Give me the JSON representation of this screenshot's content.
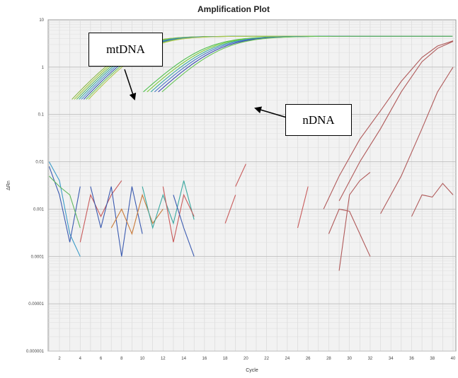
{
  "chart_data": {
    "type": "line",
    "title": "Amplification Plot",
    "xlabel": "Cycle",
    "ylabel": "ΔRn",
    "yscale": "log",
    "ylim": [
      1e-06,
      10
    ],
    "xlim": [
      1,
      40
    ],
    "grid": true,
    "x_ticks": [
      "2",
      "4",
      "6",
      "8",
      "10",
      "12",
      "14",
      "16",
      "18",
      "20",
      "22",
      "24",
      "26",
      "28",
      "30",
      "32",
      "34",
      "36",
      "38",
      "40"
    ],
    "y_ticks": [
      {
        "value": 10,
        "label": "10"
      },
      {
        "value": 1,
        "label": "1"
      },
      {
        "value": 0.1,
        "label": "0.1"
      },
      {
        "value": 0.01,
        "label": "0.01"
      },
      {
        "value": 0.001,
        "label": "0.001"
      },
      {
        "value": 0.0001,
        "label": "0.0001"
      },
      {
        "value": 1e-05,
        "label": "0.00001"
      },
      {
        "value": 1e-06,
        "label": "0.000001"
      }
    ],
    "curve_groups": [
      {
        "group": "mtDNA",
        "x_half": 9.5,
        "k": 0.55,
        "spread": 1.6,
        "colors": [
          "#8ab84a",
          "#9fc83a",
          "#5fb85f",
          "#3aa8a0",
          "#4a8fc8",
          "#3a5ab0",
          "#6ac45a",
          "#b0c850"
        ]
      },
      {
        "group": "nDNA",
        "x_half": 16.5,
        "k": 0.48,
        "spread": 1.8,
        "colors": [
          "#4fbf4f",
          "#7acc3a",
          "#3aa8a0",
          "#4a7ac8",
          "#3a4ab0",
          "#6ac45a"
        ]
      }
    ],
    "late_curves": [
      {
        "color": "#b05a5a",
        "points": [
          [
            27.5,
            0.001
          ],
          [
            29,
            0.005
          ],
          [
            31,
            0.03
          ],
          [
            33,
            0.12
          ],
          [
            35,
            0.5
          ],
          [
            37,
            1.6
          ],
          [
            38.5,
            2.8
          ],
          [
            40,
            3.6
          ]
        ]
      },
      {
        "color": "#b05a5a",
        "points": [
          [
            29,
            0.0015
          ],
          [
            31,
            0.01
          ],
          [
            33,
            0.05
          ],
          [
            35,
            0.3
          ],
          [
            37,
            1.3
          ],
          [
            38.5,
            2.5
          ],
          [
            40,
            3.5
          ]
        ]
      },
      {
        "color": "#b05a5a",
        "points": [
          [
            33,
            0.0008
          ],
          [
            35,
            0.005
          ],
          [
            37,
            0.05
          ],
          [
            38.5,
            0.3
          ],
          [
            40,
            1.0
          ]
        ]
      },
      {
        "color": "#b05a5a",
        "points": [
          [
            36,
            0.0007
          ],
          [
            37,
            0.002
          ],
          [
            38,
            0.0018
          ],
          [
            39,
            0.0035
          ],
          [
            40,
            0.002
          ]
        ]
      }
    ],
    "noise_segments": [
      {
        "color": "#3a9ac8",
        "points": [
          [
            1,
            0.01
          ],
          [
            2,
            0.004
          ],
          [
            3,
            0.0003
          ],
          [
            4,
            0.0001
          ]
        ]
      },
      {
        "color": "#3a5ab0",
        "points": [
          [
            1,
            0.008
          ],
          [
            2,
            0.002
          ],
          [
            3,
            0.0002
          ],
          [
            4,
            0.003
          ]
        ]
      },
      {
        "color": "#5fb85f",
        "points": [
          [
            1,
            0.005
          ],
          [
            2,
            0.003
          ],
          [
            3,
            0.002
          ],
          [
            4,
            0.0004
          ]
        ]
      },
      {
        "color": "#c85a5a",
        "points": [
          [
            4,
            0.0002
          ],
          [
            5,
            0.002
          ],
          [
            6,
            0.0007
          ],
          [
            7,
            0.002
          ],
          [
            8,
            0.004
          ]
        ]
      },
      {
        "color": "#3a5ab0",
        "points": [
          [
            5,
            0.003
          ],
          [
            6,
            0.0004
          ],
          [
            7,
            0.003
          ],
          [
            8,
            0.0001
          ],
          [
            9,
            0.003
          ],
          [
            10,
            0.0003
          ]
        ]
      },
      {
        "color": "#c87a3a",
        "points": [
          [
            7,
            0.0004
          ],
          [
            8,
            0.001
          ],
          [
            9,
            0.0003
          ],
          [
            10,
            0.002
          ],
          [
            11,
            0.0005
          ],
          [
            12,
            0.001
          ]
        ]
      },
      {
        "color": "#3aa8a0",
        "points": [
          [
            10,
            0.003
          ],
          [
            11,
            0.0004
          ],
          [
            12,
            0.002
          ],
          [
            13,
            0.0005
          ],
          [
            14,
            0.004
          ],
          [
            15,
            0.0006
          ]
        ]
      },
      {
        "color": "#c85a5a",
        "points": [
          [
            12,
            0.003
          ],
          [
            13,
            0.0002
          ],
          [
            14,
            0.002
          ],
          [
            15,
            0.0007
          ]
        ]
      },
      {
        "color": "#3a5ab0",
        "points": [
          [
            13,
            0.002
          ],
          [
            14,
            0.0004
          ],
          [
            15,
            0.0001
          ]
        ]
      },
      {
        "color": "#c85a5a",
        "points": [
          [
            18,
            0.0005
          ],
          [
            19,
            0.002
          ]
        ]
      },
      {
        "color": "#c85a5a",
        "points": [
          [
            19,
            0.003
          ],
          [
            20,
            0.009
          ]
        ]
      },
      {
        "color": "#c85a5a",
        "points": [
          [
            25,
            0.0004
          ],
          [
            26,
            0.003
          ]
        ]
      },
      {
        "color": "#b05a5a",
        "points": [
          [
            28,
            0.0003
          ],
          [
            29,
            0.001
          ],
          [
            30,
            0.0009
          ],
          [
            31,
            0.0003
          ],
          [
            32,
            0.0001
          ]
        ]
      },
      {
        "color": "#b05a5a",
        "points": [
          [
            29,
            5e-05
          ],
          [
            30,
            0.002
          ],
          [
            31,
            0.004
          ],
          [
            32,
            0.006
          ]
        ]
      }
    ]
  },
  "annotations": [
    {
      "name": "mtdna-callout",
      "text": "mtDNA"
    },
    {
      "name": "ndna-callout",
      "text": "nDNA"
    }
  ]
}
